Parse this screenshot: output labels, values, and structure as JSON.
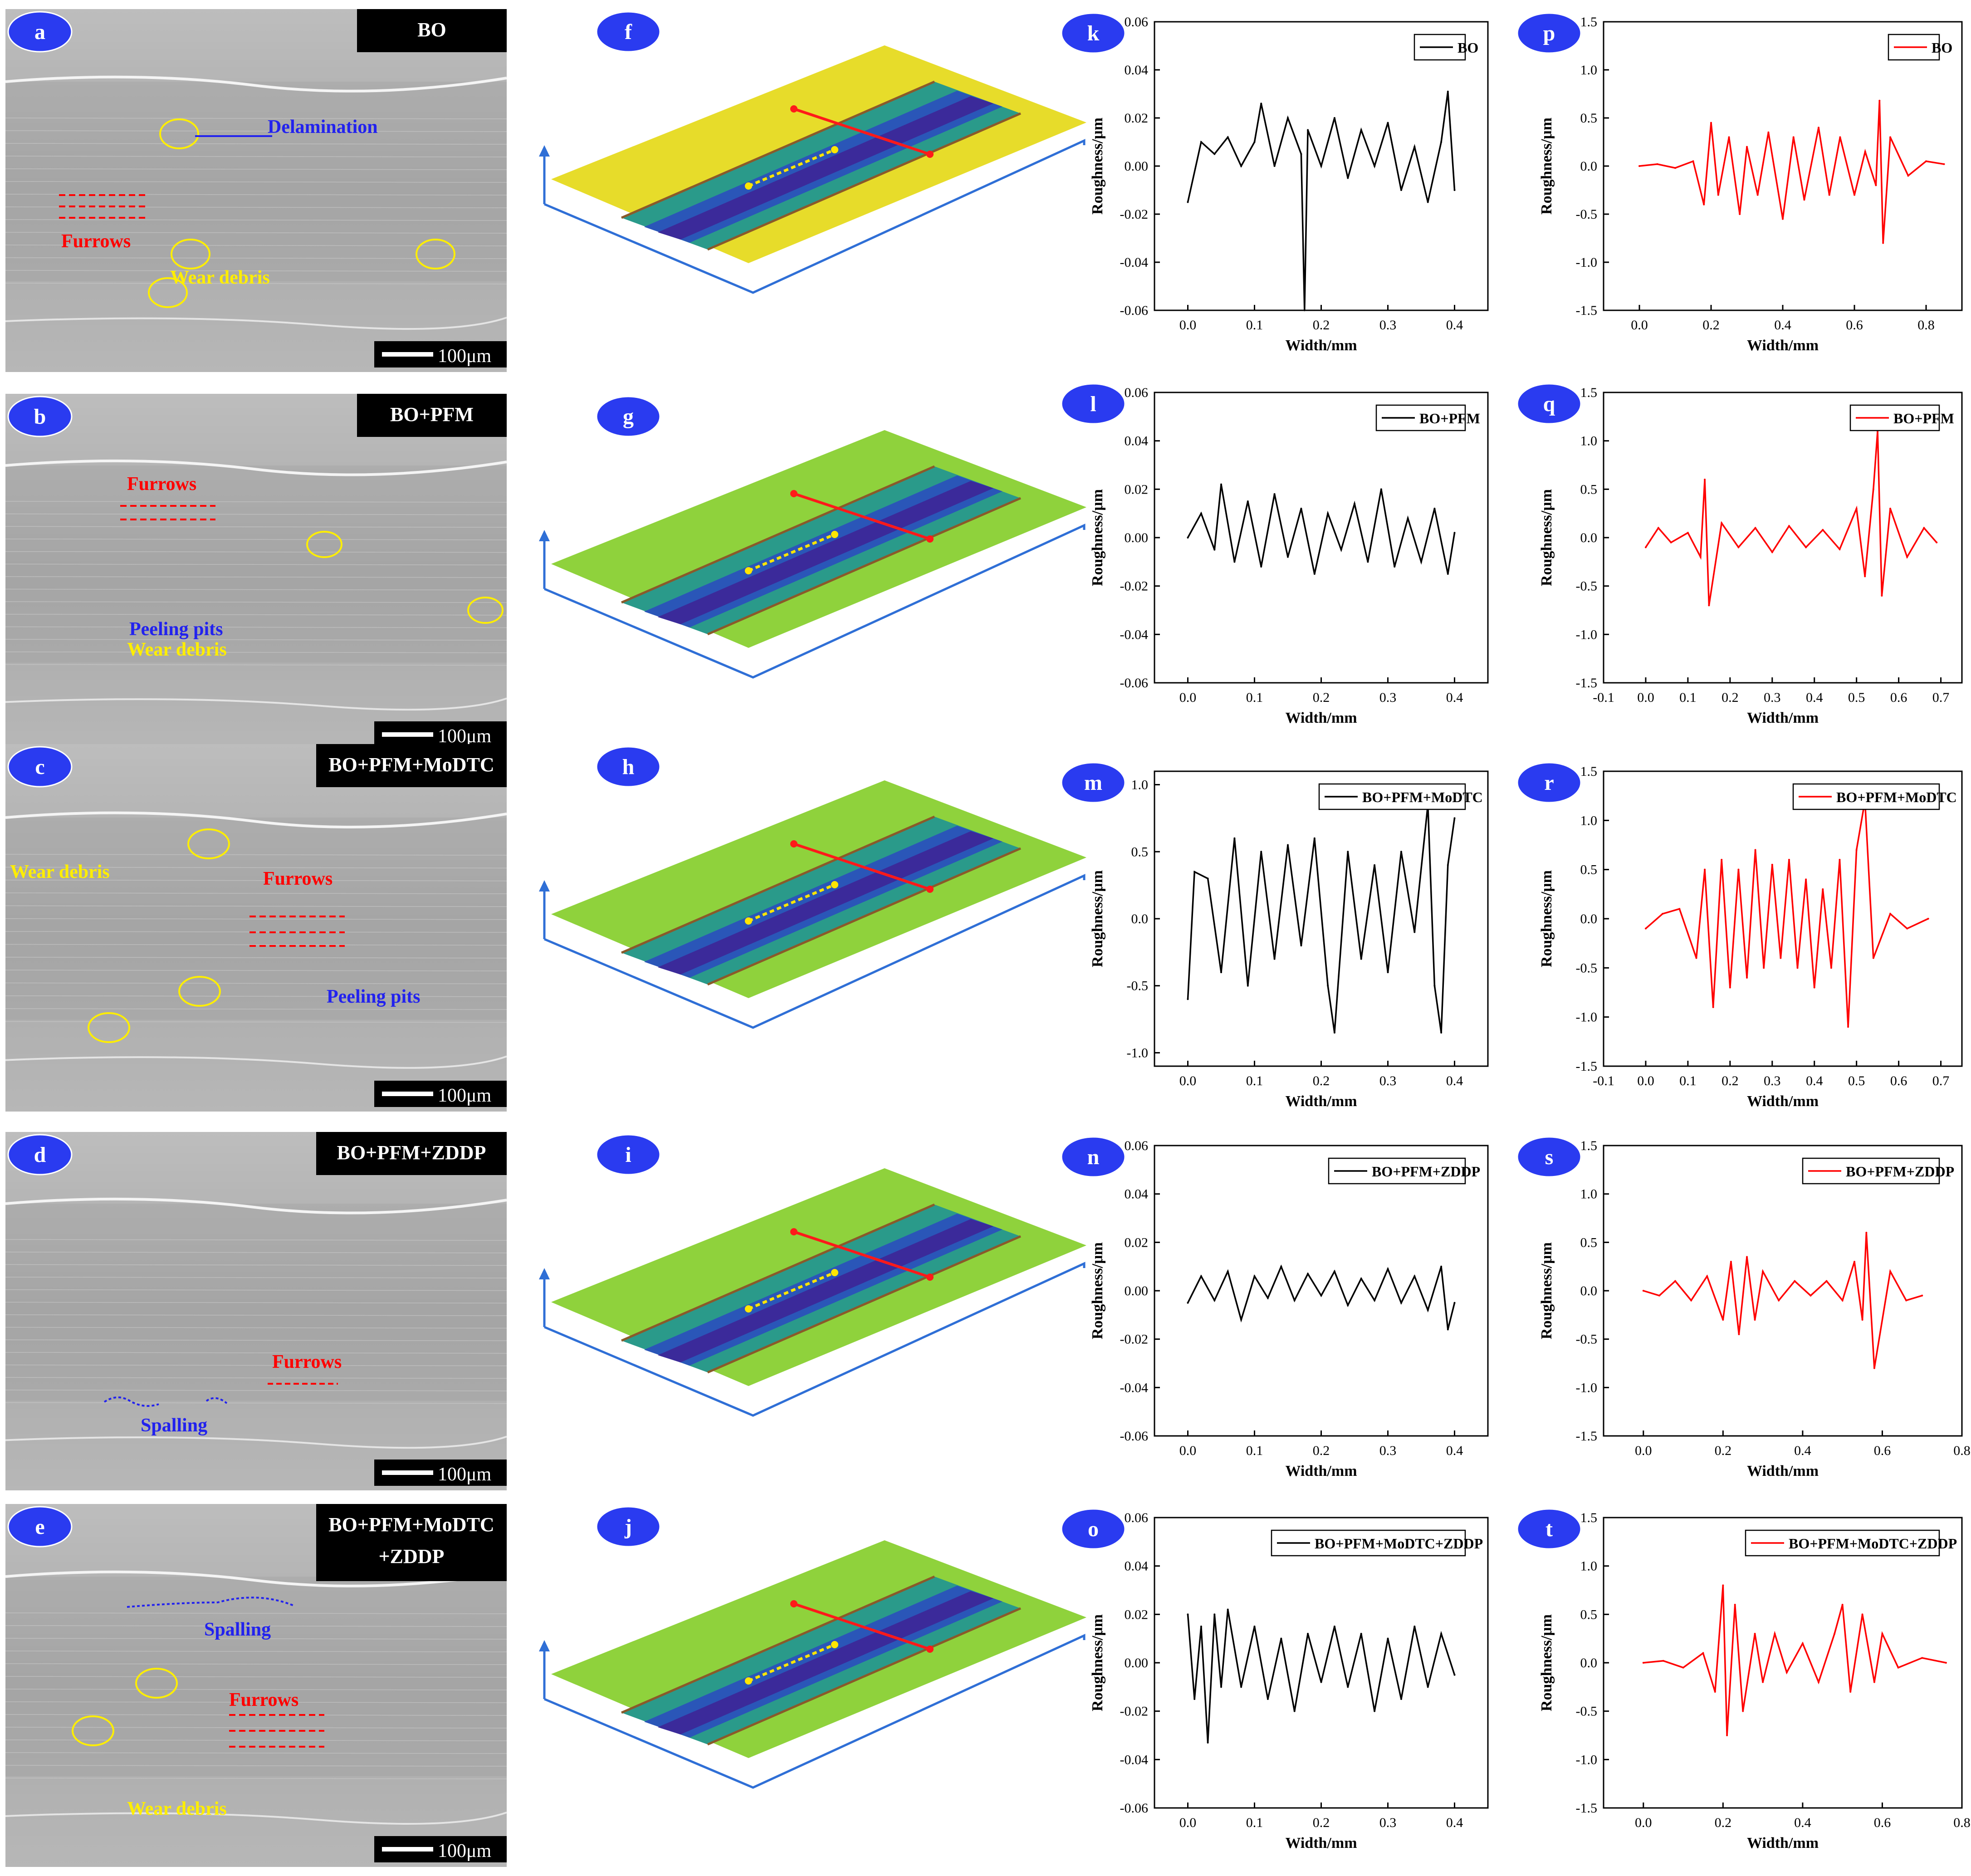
{
  "figure": {
    "semPanels": [
      {
        "letter": "a",
        "tag": "BO",
        "scale": "100μm",
        "labels": [
          {
            "text": "Delamination",
            "color": "blue"
          },
          {
            "text": "Furrows",
            "color": "red"
          },
          {
            "text": "Wear debris",
            "color": "yellow"
          }
        ]
      },
      {
        "letter": "b",
        "tag": "BO+PFM",
        "scale": "100μm",
        "labels": [
          {
            "text": "Furrows",
            "color": "red"
          },
          {
            "text": "Peeling pits",
            "color": "blue"
          },
          {
            "text": "Wear debris",
            "color": "yellow"
          }
        ]
      },
      {
        "letter": "c",
        "tag": "BO+PFM+MoDTC",
        "scale": "100μm",
        "labels": [
          {
            "text": "Wear debris",
            "color": "yellow"
          },
          {
            "text": "Furrows",
            "color": "red"
          },
          {
            "text": "Peeling pits",
            "color": "blue"
          }
        ]
      },
      {
        "letter": "d",
        "tag": "BO+PFM+ZDDP",
        "scale": "100μm",
        "labels": [
          {
            "text": "Furrows",
            "color": "red"
          },
          {
            "text": "Spalling",
            "color": "blue"
          }
        ]
      },
      {
        "letter": "e",
        "tag": "BO+PFM+MoDTC",
        "tag2": "+ZDDP",
        "scale": "100μm",
        "labels": [
          {
            "text": "Spalling",
            "color": "blue"
          },
          {
            "text": "Furrows",
            "color": "red"
          },
          {
            "text": "Wear debris",
            "color": "yellow"
          }
        ]
      }
    ],
    "surfacePanels": [
      "f",
      "g",
      "h",
      "i",
      "j"
    ],
    "colors": {
      "labelCircle": "#2a3bf0",
      "red": "#ff0000",
      "blue": "#2222ee",
      "yellow": "#ffee00",
      "surfaceYellow": "#e7dc2a",
      "surfaceGreen": "#8fd23c",
      "surfaceBlue": "#2a56b8",
      "surfacePurple": "#3b2a9a"
    }
  },
  "chart_data": [
    {
      "panel": "k",
      "type": "line",
      "legend": "BO",
      "color": "#000000",
      "xlabel": "Width/mm",
      "ylabel": "Roughness/μm",
      "xlim": [
        -0.05,
        0.45
      ],
      "ylim": [
        -0.06,
        0.06
      ],
      "xticks": [
        0.0,
        0.1,
        0.2,
        0.3,
        0.4
      ],
      "yticks": [
        -0.06,
        -0.04,
        -0.02,
        0.0,
        0.02,
        0.04,
        0.06
      ],
      "xticklabels": [
        "0.0",
        "0.1",
        "0.2",
        "0.3",
        "0.4"
      ],
      "yticklabels": [
        "-0.06",
        "-0.04",
        "-0.02",
        "0.00",
        "0.02",
        "0.04",
        "0.06"
      ],
      "x": [
        0.0,
        0.02,
        0.04,
        0.06,
        0.08,
        0.1,
        0.11,
        0.13,
        0.15,
        0.17,
        0.175,
        0.18,
        0.2,
        0.22,
        0.24,
        0.26,
        0.28,
        0.3,
        0.32,
        0.34,
        0.36,
        0.38,
        0.39,
        0.4
      ],
      "y": [
        -0.015,
        0.01,
        0.005,
        0.012,
        0.0,
        0.01,
        0.026,
        0.0,
        0.02,
        0.005,
        -0.06,
        0.015,
        0.0,
        0.02,
        -0.005,
        0.015,
        0.0,
        0.018,
        -0.01,
        0.008,
        -0.015,
        0.01,
        0.031,
        -0.01
      ]
    },
    {
      "panel": "l",
      "type": "line",
      "legend": "BO+PFM",
      "color": "#000000",
      "xlabel": "Width/mm",
      "ylabel": "Roughness/μm",
      "xlim": [
        -0.05,
        0.45
      ],
      "ylim": [
        -0.06,
        0.06
      ],
      "xticks": [
        0.0,
        0.1,
        0.2,
        0.3,
        0.4
      ],
      "yticks": [
        -0.06,
        -0.04,
        -0.02,
        0.0,
        0.02,
        0.04,
        0.06
      ],
      "xticklabels": [
        "0.0",
        "0.1",
        "0.2",
        "0.3",
        "0.4"
      ],
      "yticklabels": [
        "-0.06",
        "-0.04",
        "-0.02",
        "0.00",
        "0.02",
        "0.04",
        "0.06"
      ],
      "x": [
        0.0,
        0.02,
        0.04,
        0.05,
        0.07,
        0.09,
        0.11,
        0.13,
        0.15,
        0.17,
        0.19,
        0.21,
        0.23,
        0.25,
        0.27,
        0.29,
        0.31,
        0.33,
        0.35,
        0.37,
        0.39,
        0.4
      ],
      "y": [
        0.0,
        0.01,
        -0.005,
        0.022,
        -0.01,
        0.015,
        -0.012,
        0.018,
        -0.008,
        0.012,
        -0.015,
        0.01,
        -0.005,
        0.014,
        -0.01,
        0.02,
        -0.012,
        0.008,
        -0.01,
        0.012,
        -0.015,
        0.002
      ]
    },
    {
      "panel": "m",
      "type": "line",
      "legend": "BO+PFM+MoDTC",
      "color": "#000000",
      "xlabel": "Width/mm",
      "ylabel": "Roughness/μm",
      "xlim": [
        -0.05,
        0.45
      ],
      "ylim": [
        -1.1,
        1.1
      ],
      "xticks": [
        0.0,
        0.1,
        0.2,
        0.3,
        0.4
      ],
      "yticks": [
        -1.0,
        -0.5,
        0.0,
        0.5,
        1.0
      ],
      "xticklabels": [
        "0.0",
        "0.1",
        "0.2",
        "0.3",
        "0.4"
      ],
      "yticklabels": [
        "-1.0",
        "-0.5",
        "0.0",
        "0.5",
        "1.0"
      ],
      "x": [
        0.0,
        0.01,
        0.03,
        0.05,
        0.07,
        0.09,
        0.11,
        0.13,
        0.15,
        0.17,
        0.19,
        0.21,
        0.22,
        0.24,
        0.26,
        0.28,
        0.3,
        0.32,
        0.34,
        0.36,
        0.37,
        0.38,
        0.39,
        0.4
      ],
      "y": [
        -0.6,
        0.35,
        0.3,
        -0.4,
        0.6,
        -0.5,
        0.5,
        -0.3,
        0.55,
        -0.2,
        0.6,
        -0.5,
        -0.85,
        0.5,
        -0.3,
        0.4,
        -0.4,
        0.5,
        -0.1,
        0.85,
        -0.5,
        -0.85,
        0.4,
        0.75
      ]
    },
    {
      "panel": "n",
      "type": "line",
      "legend": "BO+PFM+ZDDP",
      "color": "#000000",
      "xlabel": "Width/mm",
      "ylabel": "Roughness/μm",
      "xlim": [
        -0.05,
        0.45
      ],
      "ylim": [
        -0.06,
        0.06
      ],
      "xticks": [
        0.0,
        0.1,
        0.2,
        0.3,
        0.4
      ],
      "yticks": [
        -0.06,
        -0.04,
        -0.02,
        0.0,
        0.02,
        0.04,
        0.06
      ],
      "xticklabels": [
        "0.0",
        "0.1",
        "0.2",
        "0.3",
        "0.4"
      ],
      "yticklabels": [
        "-0.06",
        "-0.04",
        "-0.02",
        "0.00",
        "0.02",
        "0.04",
        "0.06"
      ],
      "x": [
        0.0,
        0.02,
        0.04,
        0.06,
        0.08,
        0.1,
        0.12,
        0.14,
        0.16,
        0.18,
        0.2,
        0.22,
        0.24,
        0.26,
        0.28,
        0.3,
        0.32,
        0.34,
        0.36,
        0.38,
        0.39,
        0.4
      ],
      "y": [
        -0.005,
        0.006,
        -0.004,
        0.008,
        -0.012,
        0.006,
        -0.003,
        0.01,
        -0.004,
        0.007,
        -0.002,
        0.008,
        -0.006,
        0.005,
        -0.004,
        0.009,
        -0.005,
        0.006,
        -0.008,
        0.01,
        -0.016,
        -0.005
      ]
    },
    {
      "panel": "o",
      "type": "line",
      "legend": "BO+PFM+MoDTC+ZDDP",
      "color": "#000000",
      "xlabel": "Width/mm",
      "ylabel": "Roughness/μm",
      "xlim": [
        -0.05,
        0.45
      ],
      "ylim": [
        -0.06,
        0.06
      ],
      "xticks": [
        0.0,
        0.1,
        0.2,
        0.3,
        0.4
      ],
      "yticks": [
        -0.06,
        -0.04,
        -0.02,
        0.0,
        0.02,
        0.04,
        0.06
      ],
      "xticklabels": [
        "0.0",
        "0.1",
        "0.2",
        "0.3",
        "0.4"
      ],
      "yticklabels": [
        "-0.06",
        "-0.04",
        "-0.02",
        "0.00",
        "0.02",
        "0.04",
        "0.06"
      ],
      "x": [
        0.0,
        0.01,
        0.02,
        0.03,
        0.04,
        0.05,
        0.06,
        0.08,
        0.1,
        0.12,
        0.14,
        0.16,
        0.18,
        0.2,
        0.22,
        0.24,
        0.26,
        0.28,
        0.3,
        0.32,
        0.34,
        0.36,
        0.38,
        0.4
      ],
      "y": [
        0.02,
        -0.015,
        0.015,
        -0.033,
        0.02,
        -0.01,
        0.022,
        -0.01,
        0.015,
        -0.015,
        0.01,
        -0.02,
        0.012,
        -0.008,
        0.015,
        -0.01,
        0.012,
        -0.02,
        0.01,
        -0.015,
        0.015,
        -0.01,
        0.012,
        -0.005
      ]
    },
    {
      "panel": "p",
      "type": "line",
      "legend": "BO",
      "color": "#ff0000",
      "xlabel": "Width/mm",
      "ylabel": "Roughness/μm",
      "xlim": [
        -0.1,
        0.9
      ],
      "ylim": [
        -1.5,
        1.5
      ],
      "xticks": [
        0.0,
        0.2,
        0.4,
        0.6,
        0.8
      ],
      "yticks": [
        -1.5,
        -1.0,
        -0.5,
        0.0,
        0.5,
        1.0,
        1.5
      ],
      "xticklabels": [
        "0.0",
        "0.2",
        "0.4",
        "0.6",
        "0.8"
      ],
      "yticklabels": [
        "-1.5",
        "-1.0",
        "-0.5",
        "0.0",
        "0.5",
        "1.0",
        "1.5"
      ],
      "x": [
        0.0,
        0.05,
        0.1,
        0.15,
        0.18,
        0.2,
        0.22,
        0.25,
        0.28,
        0.3,
        0.33,
        0.36,
        0.4,
        0.43,
        0.46,
        0.5,
        0.53,
        0.56,
        0.6,
        0.63,
        0.66,
        0.67,
        0.68,
        0.7,
        0.75,
        0.8,
        0.85
      ],
      "y": [
        0.0,
        0.02,
        -0.02,
        0.05,
        -0.4,
        0.45,
        -0.3,
        0.3,
        -0.5,
        0.2,
        -0.3,
        0.35,
        -0.55,
        0.3,
        -0.35,
        0.4,
        -0.3,
        0.3,
        -0.3,
        0.15,
        -0.2,
        0.68,
        -0.8,
        0.3,
        -0.1,
        0.05,
        0.02
      ]
    },
    {
      "panel": "q",
      "type": "line",
      "legend": "BO+PFM",
      "color": "#ff0000",
      "xlabel": "Width/mm",
      "ylabel": "Roughness/μm",
      "xlim": [
        -0.1,
        0.75
      ],
      "ylim": [
        -1.5,
        1.5
      ],
      "xticks": [
        -0.1,
        0.0,
        0.1,
        0.2,
        0.3,
        0.4,
        0.5,
        0.6,
        0.7
      ],
      "yticks": [
        -1.5,
        -1.0,
        -0.5,
        0.0,
        0.5,
        1.0,
        1.5
      ],
      "xticklabels": [
        "-0.1",
        "0.0",
        "0.1",
        "0.2",
        "0.3",
        "0.4",
        "0.5",
        "0.6",
        "0.7"
      ],
      "yticklabels": [
        "-1.5",
        "-1.0",
        "-0.5",
        "0.0",
        "0.5",
        "1.0",
        "1.5"
      ],
      "x": [
        0.0,
        0.03,
        0.06,
        0.1,
        0.13,
        0.14,
        0.15,
        0.18,
        0.22,
        0.26,
        0.3,
        0.34,
        0.38,
        0.42,
        0.46,
        0.5,
        0.52,
        0.54,
        0.55,
        0.56,
        0.58,
        0.62,
        0.66,
        0.69
      ],
      "y": [
        -0.1,
        0.1,
        -0.05,
        0.05,
        -0.2,
        0.6,
        -0.7,
        0.15,
        -0.1,
        0.1,
        -0.15,
        0.12,
        -0.1,
        0.08,
        -0.12,
        0.3,
        -0.4,
        0.5,
        1.1,
        -0.6,
        0.3,
        -0.2,
        0.1,
        -0.05
      ]
    },
    {
      "panel": "r",
      "type": "line",
      "legend": "BO+PFM+MoDTC",
      "color": "#ff0000",
      "xlabel": "Width/mm",
      "ylabel": "Roughness/μm",
      "xlim": [
        -0.1,
        0.75
      ],
      "ylim": [
        -1.5,
        1.5
      ],
      "xticks": [
        -0.1,
        0.0,
        0.1,
        0.2,
        0.3,
        0.4,
        0.5,
        0.6,
        0.7
      ],
      "yticks": [
        -1.5,
        -1.0,
        -0.5,
        0.0,
        0.5,
        1.0,
        1.5
      ],
      "xticklabels": [
        "-0.1",
        "0.0",
        "0.1",
        "0.2",
        "0.3",
        "0.4",
        "0.5",
        "0.6",
        "0.7"
      ],
      "yticklabels": [
        "-1.5",
        "-1.0",
        "-0.5",
        "0.0",
        "0.5",
        "1.0",
        "1.5"
      ],
      "x": [
        0.0,
        0.04,
        0.08,
        0.12,
        0.14,
        0.16,
        0.18,
        0.2,
        0.22,
        0.24,
        0.26,
        0.28,
        0.3,
        0.32,
        0.34,
        0.36,
        0.38,
        0.4,
        0.42,
        0.44,
        0.46,
        0.48,
        0.5,
        0.52,
        0.54,
        0.58,
        0.62,
        0.67
      ],
      "y": [
        -0.1,
        0.05,
        0.1,
        -0.4,
        0.5,
        -0.9,
        0.6,
        -0.7,
        0.5,
        -0.6,
        0.7,
        -0.5,
        0.55,
        -0.4,
        0.6,
        -0.5,
        0.4,
        -0.7,
        0.3,
        -0.5,
        0.6,
        -1.1,
        0.7,
        1.2,
        -0.4,
        0.05,
        -0.1,
        0.0
      ]
    },
    {
      "panel": "s",
      "type": "line",
      "legend": "BO+PFM+ZDDP",
      "color": "#ff0000",
      "xlabel": "Width/mm",
      "ylabel": "Roughness/μm",
      "xlim": [
        -0.1,
        0.8
      ],
      "ylim": [
        -1.5,
        1.5
      ],
      "xticks": [
        0.0,
        0.2,
        0.4,
        0.6,
        0.8
      ],
      "yticks": [
        -1.5,
        -1.0,
        -0.5,
        0.0,
        0.5,
        1.0,
        1.5
      ],
      "xticklabels": [
        "0.0",
        "0.2",
        "0.4",
        "0.6",
        "0.8"
      ],
      "yticklabels": [
        "-1.5",
        "-1.0",
        "-0.5",
        "0.0",
        "0.5",
        "1.0",
        "1.5"
      ],
      "x": [
        0.0,
        0.04,
        0.08,
        0.12,
        0.16,
        0.2,
        0.22,
        0.24,
        0.26,
        0.28,
        0.3,
        0.34,
        0.38,
        0.42,
        0.46,
        0.5,
        0.53,
        0.55,
        0.56,
        0.58,
        0.62,
        0.66,
        0.7
      ],
      "y": [
        0.0,
        -0.05,
        0.1,
        -0.1,
        0.15,
        -0.3,
        0.3,
        -0.45,
        0.35,
        -0.3,
        0.2,
        -0.1,
        0.1,
        -0.05,
        0.1,
        -0.1,
        0.3,
        -0.3,
        0.6,
        -0.8,
        0.2,
        -0.1,
        -0.05
      ]
    },
    {
      "panel": "t",
      "type": "line",
      "legend": "BO+PFM+MoDTC+ZDDP",
      "color": "#ff0000",
      "xlabel": "Width/mm",
      "ylabel": "Roughness/μm",
      "xlim": [
        -0.1,
        0.8
      ],
      "ylim": [
        -1.5,
        1.5
      ],
      "xticks": [
        0.0,
        0.2,
        0.4,
        0.6,
        0.8
      ],
      "yticks": [
        -1.5,
        -1.0,
        -0.5,
        0.0,
        0.5,
        1.0,
        1.5
      ],
      "xticklabels": [
        "0.0",
        "0.2",
        "0.4",
        "0.6",
        "0.8"
      ],
      "yticklabels": [
        "-1.5",
        "-1.0",
        "-0.5",
        "0.0",
        "0.5",
        "1.0",
        "1.5"
      ],
      "x": [
        0.0,
        0.05,
        0.1,
        0.15,
        0.18,
        0.2,
        0.21,
        0.23,
        0.25,
        0.28,
        0.3,
        0.33,
        0.36,
        0.4,
        0.44,
        0.48,
        0.5,
        0.52,
        0.55,
        0.58,
        0.6,
        0.64,
        0.7,
        0.76
      ],
      "y": [
        0.0,
        0.02,
        -0.05,
        0.1,
        -0.3,
        0.8,
        -0.75,
        0.6,
        -0.5,
        0.3,
        -0.2,
        0.3,
        -0.1,
        0.2,
        -0.2,
        0.3,
        0.6,
        -0.3,
        0.5,
        -0.2,
        0.3,
        -0.05,
        0.05,
        0.0
      ]
    }
  ]
}
